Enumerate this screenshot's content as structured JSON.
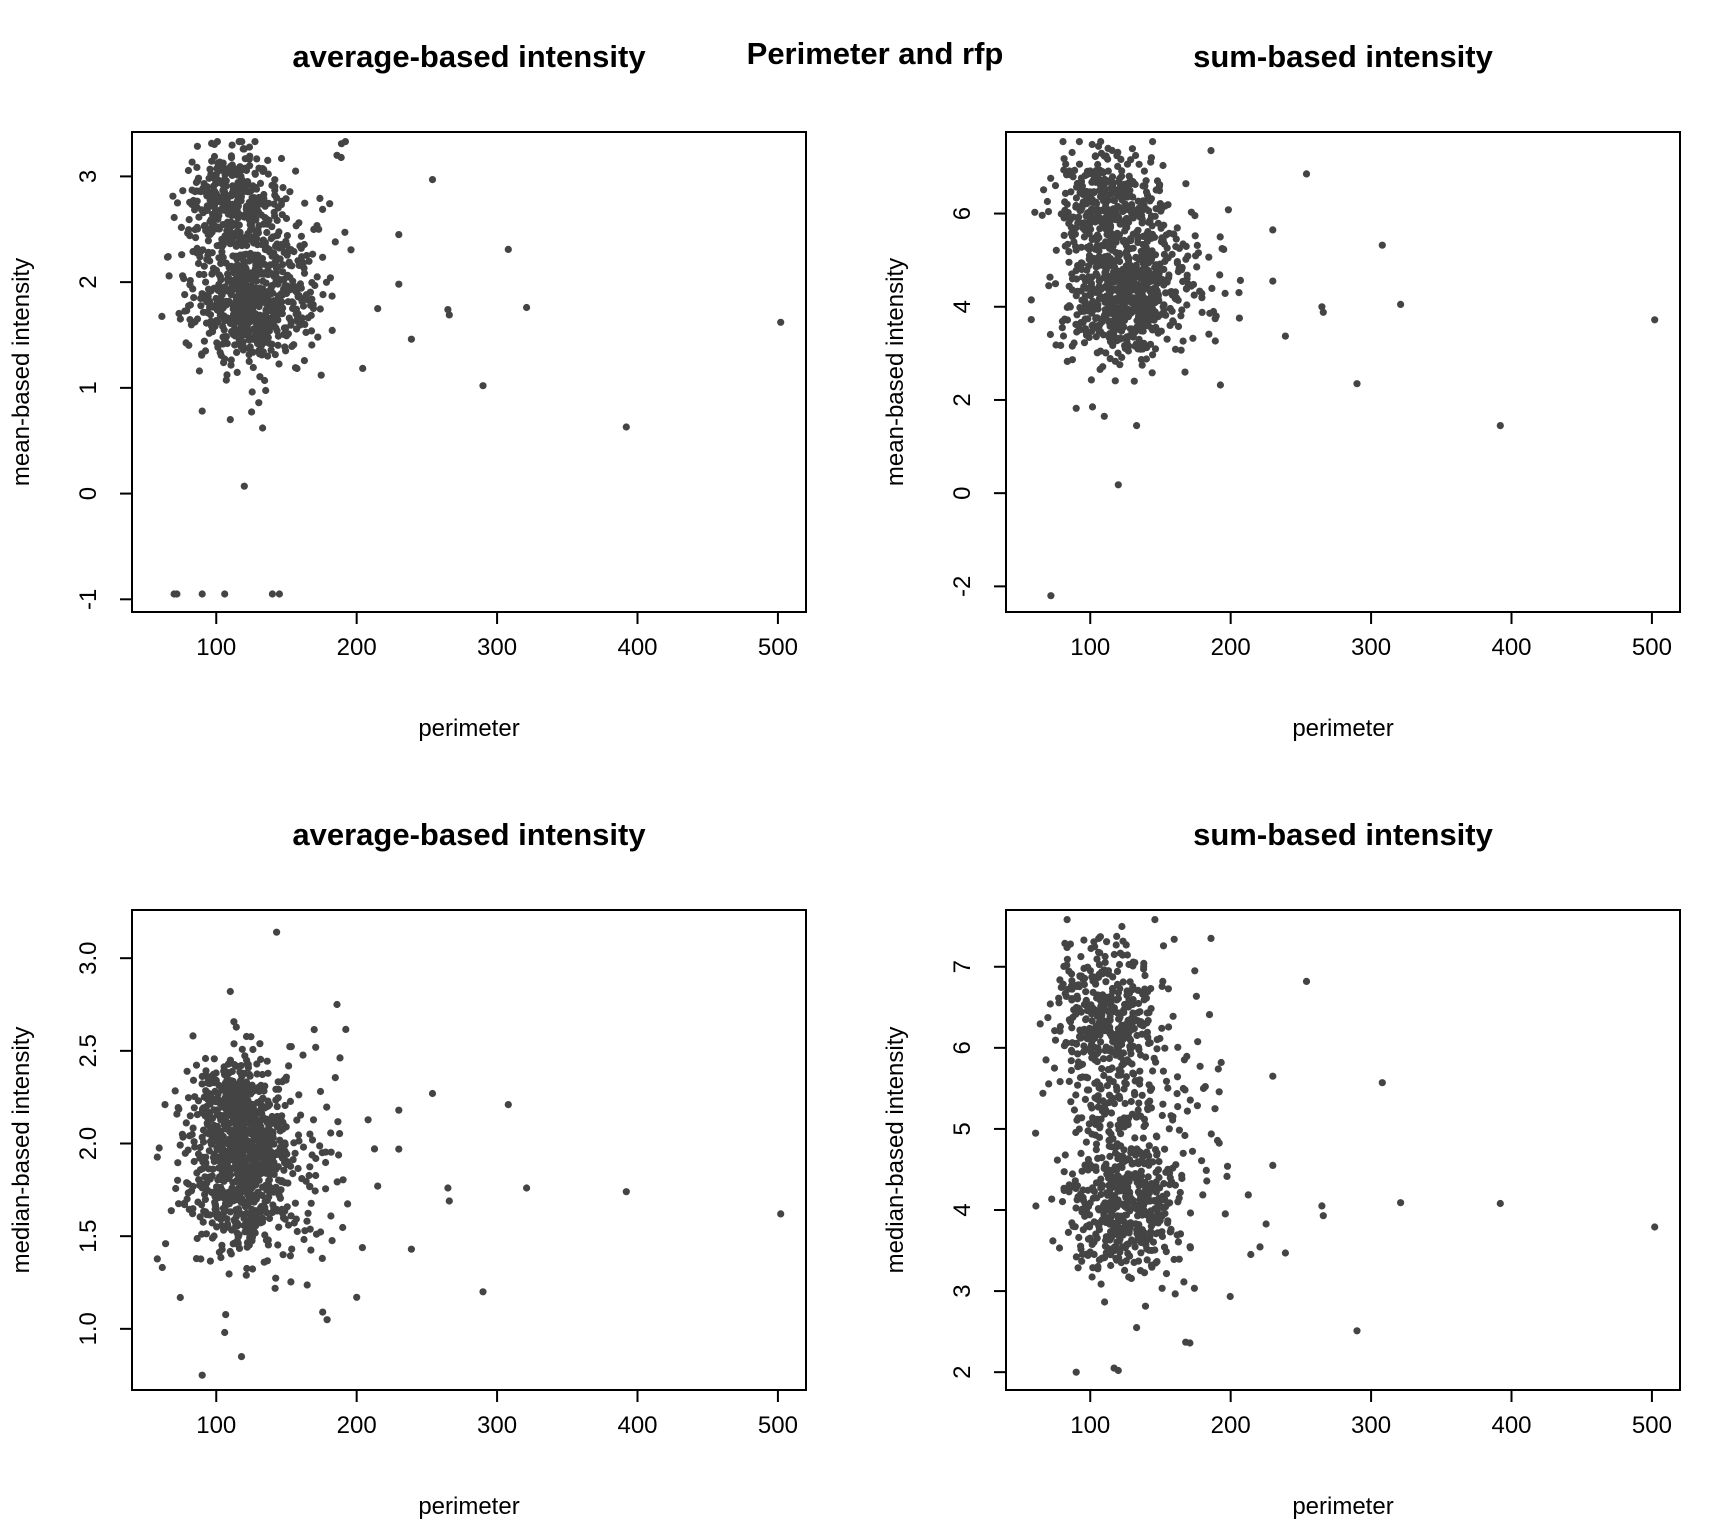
{
  "figure_title": "Perimeter and rfp",
  "colors": {
    "points": "#444444",
    "axes": "#000000",
    "background": "#ffffff"
  },
  "chart_data": [
    {
      "type": "scatter",
      "title": "average-based intensity",
      "xlabel": "perimeter",
      "ylabel": "mean-based intensity",
      "xlim": [
        40,
        520
      ],
      "ylim": [
        -1.12,
        3.42
      ],
      "xticks": [
        100,
        200,
        300,
        400,
        500
      ],
      "yticks": [
        -1,
        0,
        1,
        2,
        3
      ],
      "grid": false,
      "clusters": [
        {
          "cx": 110,
          "cy": 2.75,
          "sx": 17,
          "sy": 0.25,
          "n": 320
        },
        {
          "cx": 125,
          "cy": 1.8,
          "sx": 20,
          "sy": 0.28,
          "n": 520
        },
        {
          "cx": 130,
          "cy": 2.3,
          "sx": 22,
          "sy": 0.35,
          "n": 150
        },
        {
          "cx": 160,
          "cy": 2.0,
          "sx": 30,
          "sy": 0.55,
          "n": 60
        }
      ],
      "x_bounds": [
        58,
        240
      ],
      "points": [
        [
          70,
          -0.95
        ],
        [
          72,
          -0.95
        ],
        [
          90,
          -0.95
        ],
        [
          106,
          -0.95
        ],
        [
          140,
          -0.95
        ],
        [
          145,
          -0.95
        ],
        [
          120,
          0.07
        ],
        [
          133,
          0.62
        ],
        [
          110,
          0.7
        ],
        [
          90,
          0.78
        ],
        [
          254,
          2.97
        ],
        [
          186,
          3.2
        ],
        [
          308,
          2.31
        ],
        [
          321,
          1.76
        ],
        [
          265,
          1.74
        ],
        [
          266,
          1.69
        ],
        [
          290,
          1.02
        ],
        [
          239,
          1.46
        ],
        [
          392,
          0.63
        ],
        [
          502,
          1.62
        ],
        [
          230,
          2.45
        ],
        [
          230,
          1.98
        ],
        [
          215,
          1.75
        ]
      ]
    },
    {
      "type": "scatter",
      "title": "sum-based intensity",
      "xlabel": "perimeter",
      "ylabel": "mean-based intensity",
      "xlim": [
        40,
        520
      ],
      "ylim": [
        -2.55,
        7.75
      ],
      "xticks": [
        100,
        200,
        300,
        400,
        500
      ],
      "yticks": [
        -2,
        0,
        2,
        4,
        6
      ],
      "grid": false,
      "clusters": [
        {
          "cx": 110,
          "cy": 6.3,
          "sx": 17,
          "sy": 0.55,
          "n": 320
        },
        {
          "cx": 125,
          "cy": 4.1,
          "sx": 20,
          "sy": 0.6,
          "n": 520
        },
        {
          "cx": 130,
          "cy": 5.2,
          "sx": 22,
          "sy": 0.8,
          "n": 150
        },
        {
          "cx": 160,
          "cy": 4.5,
          "sx": 30,
          "sy": 1.2,
          "n": 60
        }
      ],
      "x_bounds": [
        58,
        240
      ],
      "points": [
        [
          72,
          -2.2
        ],
        [
          120,
          0.18
        ],
        [
          133,
          1.45
        ],
        [
          110,
          1.65
        ],
        [
          90,
          1.82
        ],
        [
          254,
          6.85
        ],
        [
          308,
          5.32
        ],
        [
          321,
          4.05
        ],
        [
          265,
          4.0
        ],
        [
          266,
          3.88
        ],
        [
          290,
          2.35
        ],
        [
          239,
          3.37
        ],
        [
          392,
          1.45
        ],
        [
          502,
          3.72
        ],
        [
          230,
          5.65
        ],
        [
          230,
          4.55
        ],
        [
          186,
          7.35
        ]
      ]
    },
    {
      "type": "scatter",
      "title": "average-based intensity",
      "xlabel": "perimeter",
      "ylabel": "median-based intensity",
      "xlim": [
        40,
        520
      ],
      "ylim": [
        0.67,
        3.26
      ],
      "xticks": [
        100,
        200,
        300,
        400,
        500
      ],
      "yticks": [
        1.0,
        1.5,
        2.0,
        2.5,
        3.0
      ],
      "ytick_labels": [
        "1.0",
        "1.5",
        "2.0",
        "2.5",
        "3.0"
      ],
      "grid": false,
      "clusters": [
        {
          "cx": 115,
          "cy": 2.15,
          "sx": 16,
          "sy": 0.16,
          "n": 420
        },
        {
          "cx": 118,
          "cy": 1.8,
          "sx": 20,
          "sy": 0.22,
          "n": 520
        },
        {
          "cx": 150,
          "cy": 1.9,
          "sx": 32,
          "sy": 0.35,
          "n": 110
        }
      ],
      "x_bounds": [
        58,
        240
      ],
      "points": [
        [
          143,
          3.14
        ],
        [
          110,
          2.82
        ],
        [
          186,
          2.75
        ],
        [
          90,
          0.75
        ],
        [
          118,
          0.85
        ],
        [
          106,
          0.98
        ],
        [
          254,
          2.27
        ],
        [
          308,
          2.21
        ],
        [
          321,
          1.76
        ],
        [
          265,
          1.76
        ],
        [
          266,
          1.69
        ],
        [
          290,
          1.2
        ],
        [
          239,
          1.43
        ],
        [
          392,
          1.74
        ],
        [
          502,
          1.62
        ],
        [
          230,
          2.18
        ],
        [
          230,
          1.97
        ],
        [
          215,
          1.77
        ],
        [
          200,
          1.17
        ]
      ]
    },
    {
      "type": "scatter",
      "title": "sum-based intensity",
      "xlabel": "perimeter",
      "ylabel": "median-based intensity",
      "xlim": [
        40,
        520
      ],
      "ylim": [
        1.78,
        7.7
      ],
      "xticks": [
        100,
        200,
        300,
        400,
        500
      ],
      "yticks": [
        2,
        3,
        4,
        5,
        6,
        7
      ],
      "grid": false,
      "clusters": [
        {
          "cx": 110,
          "cy": 6.5,
          "sx": 17,
          "sy": 0.45,
          "n": 300
        },
        {
          "cx": 118,
          "cy": 5.6,
          "sx": 22,
          "sy": 0.5,
          "n": 200
        },
        {
          "cx": 125,
          "cy": 4.1,
          "sx": 20,
          "sy": 0.45,
          "n": 480
        },
        {
          "cx": 160,
          "cy": 4.8,
          "sx": 30,
          "sy": 1.0,
          "n": 60
        }
      ],
      "x_bounds": [
        58,
        240
      ],
      "points": [
        [
          90,
          2.0
        ],
        [
          117,
          2.05
        ],
        [
          120,
          2.02
        ],
        [
          133,
          2.55
        ],
        [
          168,
          2.37
        ],
        [
          171,
          2.36
        ],
        [
          254,
          6.82
        ],
        [
          308,
          5.57
        ],
        [
          321,
          4.09
        ],
        [
          265,
          4.05
        ],
        [
          266,
          3.93
        ],
        [
          290,
          2.51
        ],
        [
          239,
          3.47
        ],
        [
          392,
          4.08
        ],
        [
          502,
          3.79
        ],
        [
          230,
          5.65
        ],
        [
          230,
          4.55
        ],
        [
          186,
          7.35
        ]
      ]
    }
  ]
}
